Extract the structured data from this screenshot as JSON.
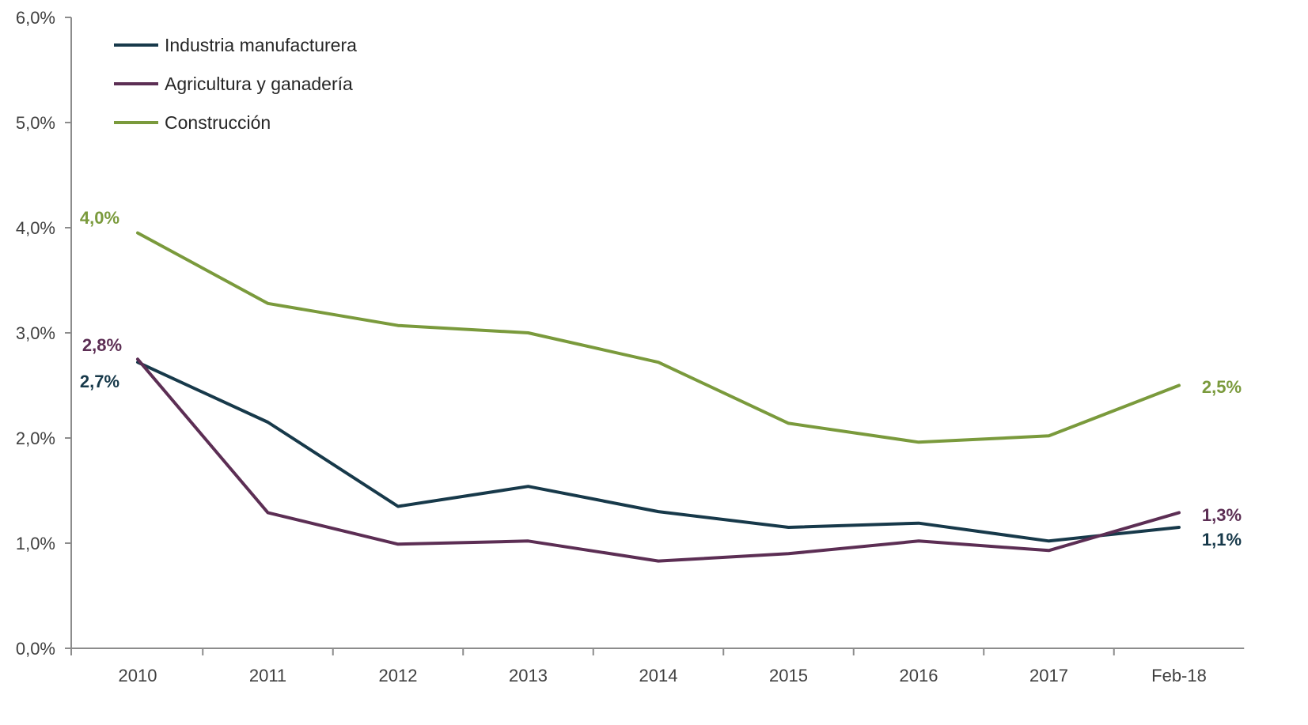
{
  "chart_data": {
    "type": "line",
    "categories": [
      "2010",
      "2011",
      "2012",
      "2013",
      "2014",
      "2015",
      "2016",
      "2017",
      "Feb-18"
    ],
    "ylim": [
      0,
      6
    ],
    "y_ticks": [
      "0,0%",
      "1,0%",
      "2,0%",
      "3,0%",
      "4,0%",
      "5,0%",
      "6,0%"
    ],
    "grid": false,
    "legend_position": "top-left",
    "series": [
      {
        "name": "Industria manufacturera",
        "color": "#17394a",
        "values": [
          2.72,
          2.15,
          1.35,
          1.54,
          1.3,
          1.15,
          1.19,
          1.02,
          1.15
        ],
        "labels": [
          "2,7%",
          "1,1%"
        ]
      },
      {
        "name": "Agricultura y ganadería",
        "color": "#5c2e54",
        "values": [
          2.75,
          1.29,
          0.99,
          1.02,
          0.83,
          0.9,
          1.02,
          0.93,
          1.29
        ],
        "labels": [
          "2,8%",
          "1,3%"
        ]
      },
      {
        "name": "Construcción",
        "color": "#7a9a3c",
        "values": [
          3.95,
          3.28,
          3.07,
          3.0,
          2.72,
          2.14,
          1.96,
          2.02,
          2.5
        ],
        "labels": [
          "4,0%",
          "2,5%"
        ]
      }
    ]
  }
}
